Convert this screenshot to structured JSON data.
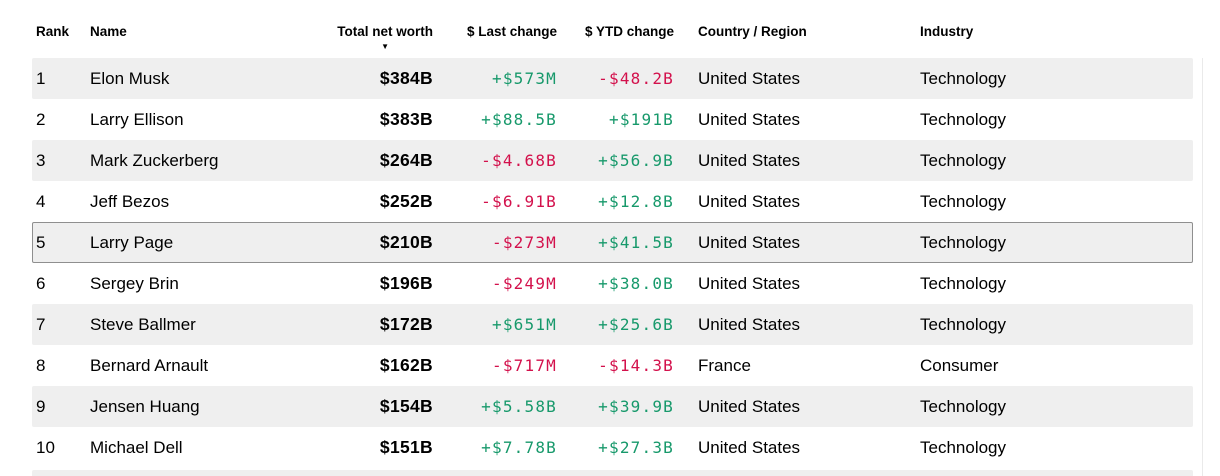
{
  "table": {
    "columns": [
      {
        "key": "rank",
        "label": "Rank",
        "align": "left"
      },
      {
        "key": "name",
        "label": "Name",
        "align": "left"
      },
      {
        "key": "net_worth",
        "label": "Total net worth",
        "align": "right",
        "sorted": "desc"
      },
      {
        "key": "last_change",
        "label": "$ Last change",
        "align": "right"
      },
      {
        "key": "ytd_change",
        "label": "$ YTD change",
        "align": "right"
      },
      {
        "key": "country",
        "label": "Country / Region",
        "align": "left"
      },
      {
        "key": "industry",
        "label": "Industry",
        "align": "left"
      }
    ],
    "sort_icon": "▼",
    "rows": [
      {
        "rank": "1",
        "name": "Elon Musk",
        "net_worth": "$384B",
        "last_change": "+$573M",
        "ytd_change": "-$48.2B",
        "country": "United States",
        "industry": "Technology",
        "highlighted": false
      },
      {
        "rank": "2",
        "name": "Larry Ellison",
        "net_worth": "$383B",
        "last_change": "+$88.5B",
        "ytd_change": "+$191B",
        "country": "United States",
        "industry": "Technology",
        "highlighted": false
      },
      {
        "rank": "3",
        "name": "Mark Zuckerberg",
        "net_worth": "$264B",
        "last_change": "-$4.68B",
        "ytd_change": "+$56.9B",
        "country": "United States",
        "industry": "Technology",
        "highlighted": false
      },
      {
        "rank": "4",
        "name": "Jeff Bezos",
        "net_worth": "$252B",
        "last_change": "-$6.91B",
        "ytd_change": "+$12.8B",
        "country": "United States",
        "industry": "Technology",
        "highlighted": false
      },
      {
        "rank": "5",
        "name": "Larry Page",
        "net_worth": "$210B",
        "last_change": "-$273M",
        "ytd_change": "+$41.5B",
        "country": "United States",
        "industry": "Technology",
        "highlighted": true
      },
      {
        "rank": "6",
        "name": "Sergey Brin",
        "net_worth": "$196B",
        "last_change": "-$249M",
        "ytd_change": "+$38.0B",
        "country": "United States",
        "industry": "Technology",
        "highlighted": false
      },
      {
        "rank": "7",
        "name": "Steve Ballmer",
        "net_worth": "$172B",
        "last_change": "+$651M",
        "ytd_change": "+$25.6B",
        "country": "United States",
        "industry": "Technology",
        "highlighted": false
      },
      {
        "rank": "8",
        "name": "Bernard Arnault",
        "net_worth": "$162B",
        "last_change": "-$717M",
        "ytd_change": "-$14.3B",
        "country": "France",
        "industry": "Consumer",
        "highlighted": false
      },
      {
        "rank": "9",
        "name": "Jensen Huang",
        "net_worth": "$154B",
        "last_change": "+$5.58B",
        "ytd_change": "+$39.9B",
        "country": "United States",
        "industry": "Technology",
        "highlighted": false
      },
      {
        "rank": "10",
        "name": "Michael Dell",
        "net_worth": "$151B",
        "last_change": "+$7.78B",
        "ytd_change": "+$27.3B",
        "country": "United States",
        "industry": "Technology",
        "highlighted": false
      }
    ],
    "next_row_partially_visible": true
  },
  "colors": {
    "positive_change": "#17996b",
    "negative_change": "#d3114c",
    "row_stripe": "#efefef",
    "highlight_border": "#8f8f8f",
    "text": "#000000",
    "background": "#ffffff"
  }
}
